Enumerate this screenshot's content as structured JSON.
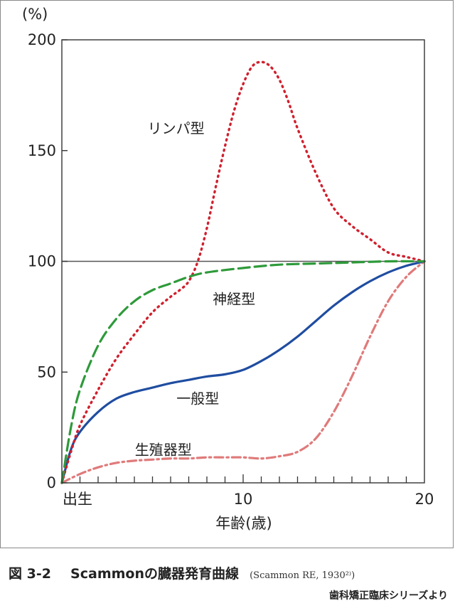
{
  "chart_data": {
    "type": "line",
    "ylabel": "(%)",
    "xlabel": "年齢(歳)",
    "xlim": [
      0,
      20
    ],
    "ylim": [
      0,
      200
    ],
    "y_ticks": [
      0,
      50,
      100,
      150,
      200
    ],
    "x_tick_labels": [
      {
        "x": 0,
        "label": "出生"
      },
      {
        "x": 10,
        "label": "10"
      },
      {
        "x": 20,
        "label": "20"
      }
    ],
    "reference_line": 100,
    "series": [
      {
        "name": "リンパ型",
        "color": "#d0202e",
        "style": "dotted",
        "label_at": [
          6.3,
          160
        ],
        "x": [
          0,
          0.5,
          1,
          2,
          3,
          4,
          5,
          6,
          6.5,
          7,
          7.5,
          8,
          8.5,
          9,
          9.5,
          10,
          10.5,
          11,
          11.5,
          12,
          12.5,
          13,
          14,
          15,
          16,
          17,
          18,
          19,
          20
        ],
        "values": [
          0,
          14,
          26,
          42,
          56,
          67,
          77,
          84,
          87,
          91,
          100,
          115,
          134,
          152,
          168,
          180,
          188,
          190,
          188,
          182,
          172,
          160,
          140,
          124,
          116,
          110,
          104,
          102,
          100
        ]
      },
      {
        "name": "神経型",
        "color": "#2e9a3a",
        "style": "dashed",
        "label_at": [
          9.5,
          83
        ],
        "x": [
          0,
          0.5,
          1,
          2,
          3,
          4,
          5,
          6,
          7,
          8,
          10,
          12,
          14,
          16,
          18,
          20
        ],
        "values": [
          0,
          25,
          42,
          62,
          74,
          82,
          87,
          90,
          93,
          95,
          97,
          98.5,
          99,
          99.5,
          100,
          100
        ]
      },
      {
        "name": "一般型",
        "color": "#1f4da0",
        "style": "solid",
        "label_at": [
          7.5,
          38
        ],
        "x": [
          0,
          0.5,
          1,
          2,
          3,
          4,
          5,
          6,
          7,
          8,
          9,
          10,
          11,
          12,
          13,
          14,
          15,
          16,
          17,
          18,
          19,
          20
        ],
        "values": [
          0,
          15,
          23,
          32,
          38,
          41,
          43,
          45,
          46.5,
          48,
          49,
          51,
          55,
          60,
          66,
          73,
          80,
          86,
          91,
          95,
          98,
          100
        ]
      },
      {
        "name": "生殖器型",
        "color": "#e07a7a",
        "style": "dashdot",
        "label_at": [
          5.6,
          15
        ],
        "x": [
          0,
          1,
          2,
          3,
          4,
          5,
          6,
          7,
          8,
          9,
          10,
          11,
          12,
          13,
          14,
          15,
          16,
          17,
          18,
          19,
          20
        ],
        "values": [
          0,
          4,
          7,
          9,
          10,
          10.5,
          11,
          11,
          11.5,
          11.5,
          11.5,
          11,
          12,
          14,
          20,
          32,
          48,
          66,
          82,
          93,
          100
        ]
      }
    ]
  },
  "caption": {
    "label": "図 3-2",
    "title": "Scammonの臓器発育曲線",
    "reference": "(Scammon RE, 1930²⁾)"
  },
  "source_note": "歯科矯正臨床シリーズより"
}
